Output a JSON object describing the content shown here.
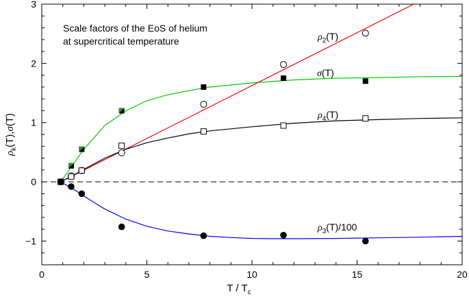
{
  "chart_data": {
    "type": "scatter",
    "title": "",
    "annotation_lines": [
      "Scale factors of the EoS of helium",
      "at supercritical temperature"
    ],
    "xlabel": {
      "main": "T / T",
      "sub": "c"
    },
    "ylabel": {
      "sym": "ρ",
      "sub": "k",
      "mid": "(T),",
      "sym2": "σ",
      "tail": "(T)"
    },
    "xlim": [
      0,
      20
    ],
    "ylim": [
      -1.4,
      3
    ],
    "xticks": [
      0,
      5,
      10,
      15,
      20
    ],
    "yticks": [
      -1,
      0,
      1,
      2,
      3
    ],
    "xtick_labels": [
      "0",
      "5",
      "10",
      "15",
      "20"
    ],
    "ytick_labels": [
      "−1",
      "0",
      "1",
      "2",
      "3"
    ],
    "grid": false,
    "zero_line": "dashed",
    "series": [
      {
        "name": "σ(T)",
        "label_parts": {
          "sym": "σ",
          "rest": "(T)"
        },
        "marker": "filled-square-half",
        "points": [
          {
            "x": 0.9,
            "y": 0.0
          },
          {
            "x": 1.4,
            "y": 0.27
          },
          {
            "x": 1.9,
            "y": 0.55
          },
          {
            "x": 3.8,
            "y": 1.2
          },
          {
            "x": 7.7,
            "y": 1.6
          },
          {
            "x": 11.5,
            "y": 1.75
          },
          {
            "x": 15.4,
            "y": 1.7
          }
        ],
        "fit": {
          "color": "#00cc00",
          "points": [
            {
              "x": 0.9,
              "y": 0.0
            },
            {
              "x": 1.5,
              "y": 0.3
            },
            {
              "x": 2.0,
              "y": 0.55
            },
            {
              "x": 3.0,
              "y": 0.95
            },
            {
              "x": 4.0,
              "y": 1.2
            },
            {
              "x": 5.0,
              "y": 1.37
            },
            {
              "x": 6.0,
              "y": 1.47
            },
            {
              "x": 7.0,
              "y": 1.54
            },
            {
              "x": 8.0,
              "y": 1.6
            },
            {
              "x": 10.0,
              "y": 1.67
            },
            {
              "x": 12.0,
              "y": 1.72
            },
            {
              "x": 14.0,
              "y": 1.75
            },
            {
              "x": 16.0,
              "y": 1.76
            },
            {
              "x": 18.0,
              "y": 1.775
            },
            {
              "x": 20.0,
              "y": 1.78
            }
          ]
        }
      },
      {
        "name": "ρ2(T)",
        "label_parts": {
          "sym": "ρ",
          "sub": "2",
          "rest": "(T)"
        },
        "marker": "open-circle",
        "points": [
          {
            "x": 0.9,
            "y": 0.0
          },
          {
            "x": 1.4,
            "y": 0.1
          },
          {
            "x": 1.9,
            "y": 0.19
          },
          {
            "x": 3.8,
            "y": 0.49
          },
          {
            "x": 7.7,
            "y": 1.31
          },
          {
            "x": 11.5,
            "y": 1.98
          },
          {
            "x": 15.4,
            "y": 2.51
          }
        ],
        "fit": {
          "color": "#ff0000",
          "points": [
            {
              "x": 0.9,
              "y": 0.0
            },
            {
              "x": 17.7,
              "y": 3.0
            }
          ]
        }
      },
      {
        "name": "ρ4(T)",
        "label_parts": {
          "sym": "ρ",
          "sub": "4",
          "rest": "(T)"
        },
        "marker": "open-square",
        "points": [
          {
            "x": 0.9,
            "y": 0.0
          },
          {
            "x": 1.4,
            "y": 0.09
          },
          {
            "x": 1.9,
            "y": 0.19
          },
          {
            "x": 3.8,
            "y": 0.61
          },
          {
            "x": 7.7,
            "y": 0.85
          },
          {
            "x": 11.5,
            "y": 0.95
          },
          {
            "x": 15.4,
            "y": 1.07
          }
        ],
        "fit": {
          "color": "#000000",
          "points": [
            {
              "x": 0.9,
              "y": 0.0
            },
            {
              "x": 1.5,
              "y": 0.11
            },
            {
              "x": 2.0,
              "y": 0.21
            },
            {
              "x": 3.0,
              "y": 0.4
            },
            {
              "x": 4.0,
              "y": 0.55
            },
            {
              "x": 5.0,
              "y": 0.66
            },
            {
              "x": 6.0,
              "y": 0.74
            },
            {
              "x": 7.0,
              "y": 0.81
            },
            {
              "x": 8.0,
              "y": 0.86
            },
            {
              "x": 10.0,
              "y": 0.93
            },
            {
              "x": 12.0,
              "y": 0.99
            },
            {
              "x": 14.0,
              "y": 1.03
            },
            {
              "x": 16.0,
              "y": 1.05
            },
            {
              "x": 18.0,
              "y": 1.07
            },
            {
              "x": 20.0,
              "y": 1.08
            }
          ]
        }
      },
      {
        "name": "ρ3(T)/100",
        "label_parts": {
          "sym": "ρ",
          "sub": "3",
          "rest": "(T)/100"
        },
        "marker": "filled-circle",
        "points": [
          {
            "x": 0.9,
            "y": 0.0
          },
          {
            "x": 1.4,
            "y": -0.08
          },
          {
            "x": 1.9,
            "y": -0.2
          },
          {
            "x": 3.8,
            "y": -0.76
          },
          {
            "x": 7.7,
            "y": -0.91
          },
          {
            "x": 11.5,
            "y": -0.9
          },
          {
            "x": 15.4,
            "y": -1.0
          }
        ],
        "fit": {
          "color": "#0000ff",
          "points": [
            {
              "x": 0.9,
              "y": 0.0
            },
            {
              "x": 1.5,
              "y": -0.12
            },
            {
              "x": 2.0,
              "y": -0.24
            },
            {
              "x": 3.0,
              "y": -0.46
            },
            {
              "x": 4.0,
              "y": -0.63
            },
            {
              "x": 5.0,
              "y": -0.75
            },
            {
              "x": 6.0,
              "y": -0.83
            },
            {
              "x": 7.0,
              "y": -0.88
            },
            {
              "x": 8.0,
              "y": -0.92
            },
            {
              "x": 9.0,
              "y": -0.94
            },
            {
              "x": 10.0,
              "y": -0.955
            },
            {
              "x": 11.0,
              "y": -0.96
            },
            {
              "x": 12.0,
              "y": -0.96
            },
            {
              "x": 14.0,
              "y": -0.955
            },
            {
              "x": 16.0,
              "y": -0.945
            },
            {
              "x": 18.0,
              "y": -0.935
            },
            {
              "x": 20.0,
              "y": -0.92
            }
          ]
        }
      }
    ]
  }
}
